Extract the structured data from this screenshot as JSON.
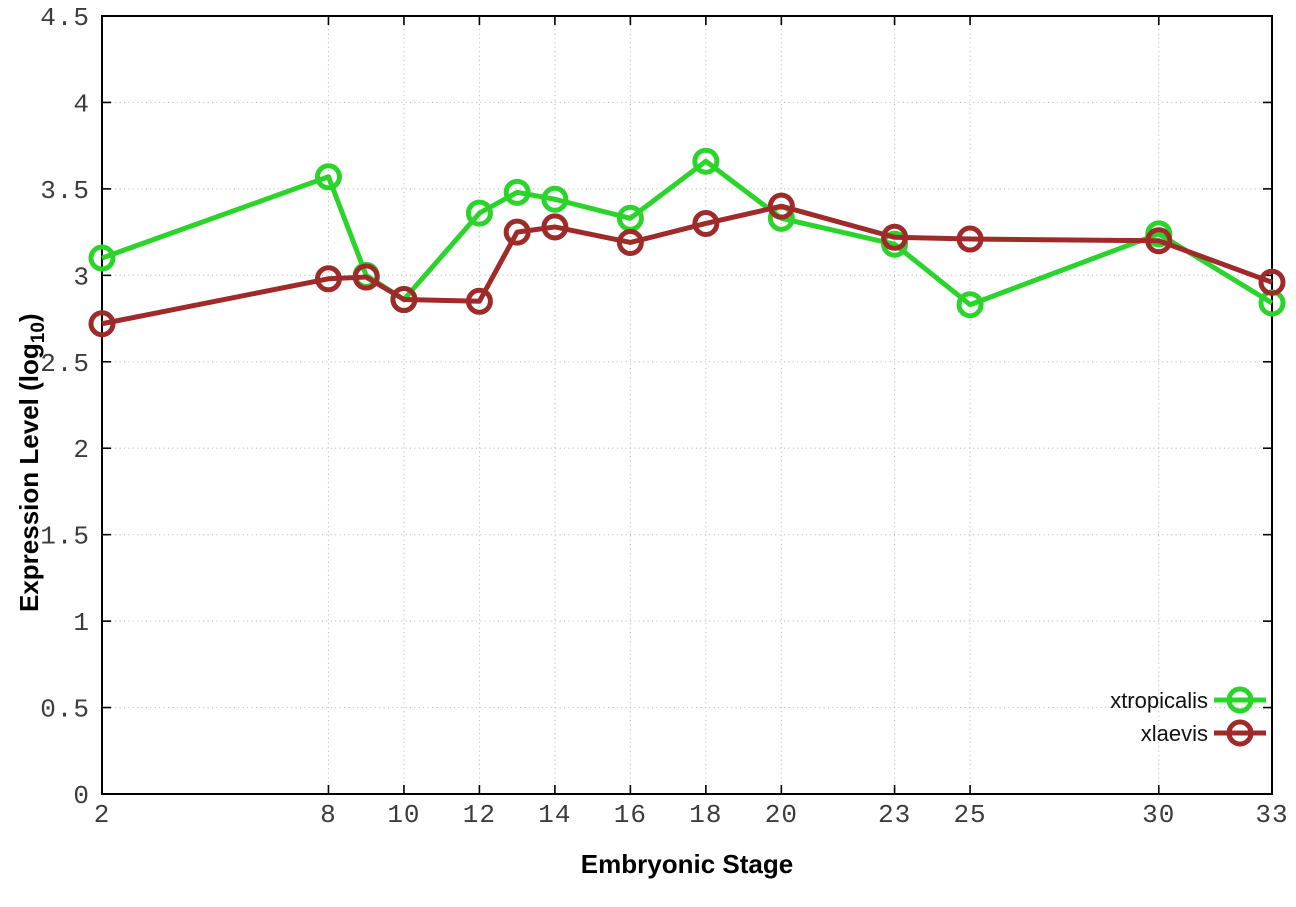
{
  "chart_data": {
    "type": "line",
    "title": "",
    "xlabel": "Embryonic Stage",
    "ylabel": "Expression Level (log10)",
    "ylabel_parts": {
      "prefix": "Expression Level (log",
      "sub": "10",
      "suffix": ")"
    },
    "x": [
      2,
      8,
      9,
      10,
      12,
      13,
      14,
      16,
      18,
      20,
      23,
      25,
      30,
      33
    ],
    "series": [
      {
        "name": "xtropicalis",
        "color": "#2bd42b",
        "values": [
          3.1,
          3.57,
          3.0,
          2.86,
          3.36,
          3.48,
          3.44,
          3.33,
          3.66,
          3.33,
          3.18,
          2.83,
          3.24,
          2.84
        ]
      },
      {
        "name": "xlaevis",
        "color": "#9e2a2a",
        "values": [
          2.72,
          2.98,
          2.99,
          2.86,
          2.85,
          3.25,
          3.28,
          3.19,
          3.3,
          3.4,
          3.22,
          3.21,
          3.2,
          2.96
        ]
      }
    ],
    "xlim": [
      2,
      33
    ],
    "ylim": [
      0,
      4.5
    ],
    "xticks": {
      "values": [
        2,
        8,
        10,
        12,
        14,
        16,
        18,
        20,
        23,
        25,
        30,
        33
      ],
      "labels": [
        "2",
        "8",
        "10",
        "12",
        "14",
        "16",
        "18",
        "20",
        "23",
        "25",
        "30",
        "33"
      ]
    },
    "yticks": {
      "values": [
        0,
        0.5,
        1,
        1.5,
        2,
        2.5,
        3,
        3.5,
        4,
        4.5
      ],
      "labels": [
        "0",
        "0.5",
        "1",
        "1.5",
        "2",
        "2.5",
        "3",
        "3.5",
        "4",
        "4.5"
      ]
    },
    "grid": true,
    "legend_position": "bottom-right",
    "marker_style": "open-circle"
  }
}
